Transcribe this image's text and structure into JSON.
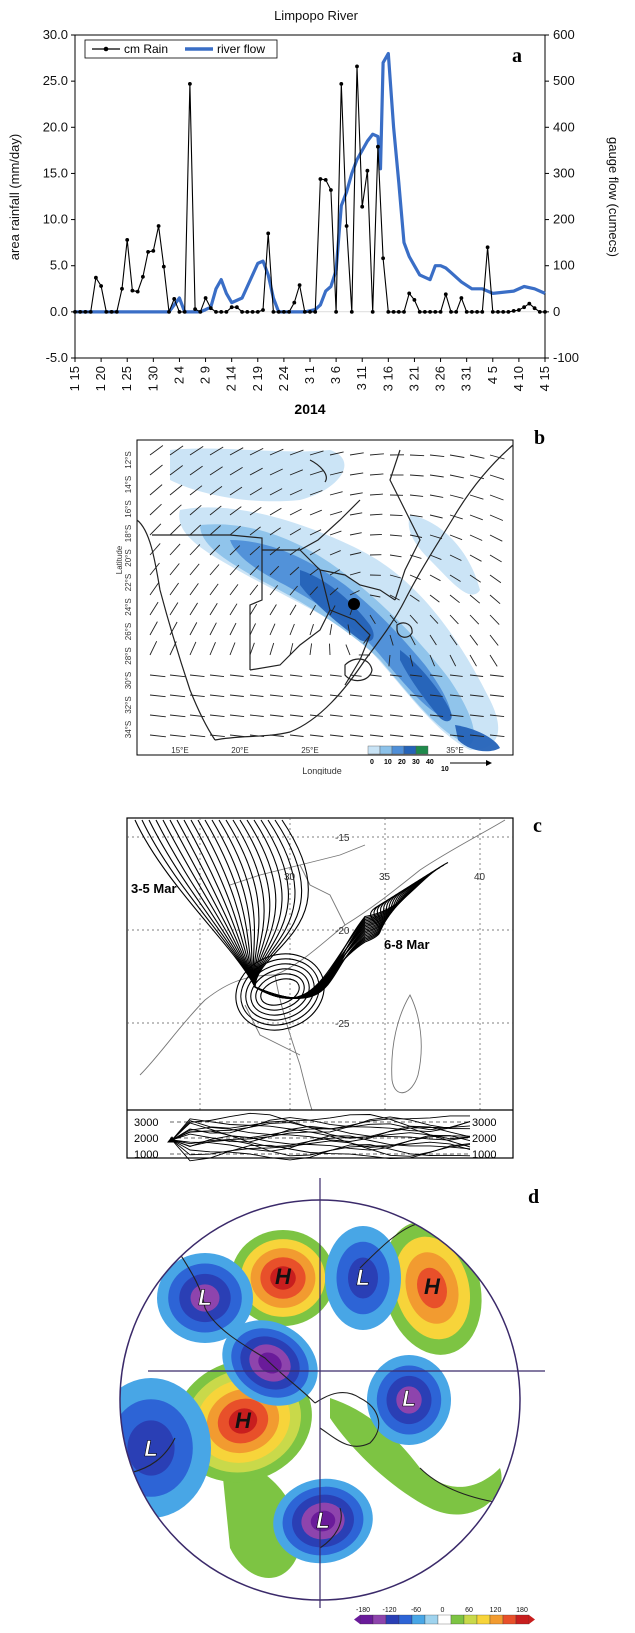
{
  "panel_labels": [
    "a",
    "b",
    "c",
    "d"
  ],
  "chart_data": {
    "type": "line",
    "title": "Limpopo River",
    "xlabel": "2014",
    "ylabel": "area rainfall (mm/day)",
    "y2label": "gauge flow (cumecs)",
    "ylim": [
      -5,
      30
    ],
    "y2lim": [
      -100,
      600
    ],
    "y_ticks": [
      "-5.0",
      "0.0",
      "5.0",
      "10.0",
      "15.0",
      "20.0",
      "25.0",
      "30.0"
    ],
    "y2_ticks": [
      "-100",
      "0",
      "100",
      "200",
      "300",
      "400",
      "500",
      "600"
    ],
    "x_ticks": [
      "1 15",
      "1 20",
      "1 25",
      "1 30",
      "2 4",
      "2 9",
      "2 14",
      "2 19",
      "2 24",
      "3 1",
      "3 6",
      "3 11",
      "3 16",
      "3 21",
      "3 26",
      "3 31",
      "4 5",
      "4 10",
      "4 15"
    ],
    "legend_position": "top-left",
    "series": [
      {
        "name": "cm Rain",
        "axis": "left",
        "color": "#000000",
        "marker": "dot",
        "x": [
          0,
          1,
          2,
          3,
          4,
          5,
          6,
          7,
          8,
          9,
          10,
          11,
          12,
          13,
          14,
          15,
          16,
          17,
          18,
          19,
          20,
          21,
          22,
          23,
          24,
          25,
          26,
          27,
          28,
          29,
          30,
          31,
          32,
          33,
          34,
          35,
          36,
          37,
          38,
          39,
          40,
          41,
          42,
          43,
          44,
          45,
          46,
          47,
          48,
          49,
          50,
          51,
          52,
          53,
          54,
          55,
          56,
          57,
          58,
          59,
          60,
          61,
          62,
          63,
          64,
          65,
          66,
          67,
          68,
          69,
          70,
          71,
          72,
          73,
          74,
          75,
          76,
          77,
          78,
          79,
          80,
          81,
          82,
          83,
          84,
          85,
          86,
          87,
          88,
          89,
          90
        ],
        "values": [
          0,
          0,
          0,
          0,
          3.7,
          2.8,
          0,
          0,
          0,
          2.5,
          7.8,
          2.3,
          2.2,
          3.8,
          6.5,
          6.6,
          9.3,
          4.9,
          0,
          1.4,
          0,
          0,
          24.7,
          0.3,
          0,
          1.5,
          0.4,
          0,
          0,
          0,
          0.5,
          0.5,
          0,
          0,
          0,
          0,
          0.2,
          8.5,
          0,
          0,
          0,
          0,
          1.0,
          2.9,
          0,
          0,
          0,
          14.4,
          14.3,
          13.2,
          0,
          24.7,
          9.3,
          0,
          26.6,
          11.4,
          15.3,
          0,
          17.9,
          5.8,
          0,
          0,
          0,
          0,
          2.0,
          1.3,
          0,
          0,
          0,
          0,
          0,
          1.9,
          0,
          0,
          1.5,
          0,
          0,
          0,
          0,
          7.0,
          0,
          0,
          0,
          0,
          0.1,
          0.2,
          0.5,
          0.9,
          0.4,
          0,
          0
        ]
      },
      {
        "name": "river flow",
        "axis": "right",
        "color": "#3a6ec6",
        "x": [
          0,
          4,
          8,
          14,
          18,
          19,
          20,
          21,
          22,
          24,
          25,
          26,
          27,
          28,
          29,
          30,
          32,
          34,
          35,
          36,
          37,
          38,
          39,
          40,
          44,
          46,
          47,
          48,
          49,
          50,
          51,
          52,
          53,
          54,
          55,
          56,
          57,
          58,
          58.5,
          59,
          60,
          61,
          62,
          63,
          64,
          65,
          66,
          67,
          68,
          69,
          70,
          71,
          72,
          74,
          76,
          78,
          80,
          84,
          86,
          88,
          90
        ],
        "values": [
          0,
          0,
          0,
          0,
          0,
          15,
          30,
          0,
          0,
          0,
          5,
          10,
          50,
          70,
          40,
          20,
          30,
          80,
          105,
          110,
          80,
          30,
          0,
          0,
          0,
          5,
          15,
          45,
          55,
          90,
          230,
          260,
          300,
          330,
          350,
          370,
          385,
          380,
          310,
          540,
          560,
          400,
          280,
          150,
          120,
          100,
          80,
          75,
          70,
          100,
          100,
          95,
          85,
          65,
          50,
          50,
          40,
          45,
          55,
          50,
          40
        ]
      }
    ]
  },
  "map_b": {
    "xlabel": "Longitude",
    "ylabel": "Latitude",
    "lon_ticks": [
      "15°E",
      "20°E",
      "25°E",
      "30°E",
      "35°E"
    ],
    "lat_ticks": [
      "12°S",
      "14°S",
      "16°S",
      "18°S",
      "20°S",
      "22°S",
      "24°S",
      "26°S",
      "28°S",
      "30°S",
      "32°S",
      "34°S"
    ],
    "colorbar_ticks": [
      "0",
      "10",
      "20",
      "30",
      "40"
    ],
    "vector_scale": "10",
    "colors": [
      "#c8e3f5",
      "#8cc2ea",
      "#4f8fd8",
      "#2563b8",
      "#1f8a4c"
    ]
  },
  "map_c": {
    "lat_labels": [
      "-15",
      "-20",
      "-25"
    ],
    "lon_labels": [
      "30",
      "35",
      "40"
    ],
    "annotations": [
      "3-5 Mar",
      "6-8 Mar"
    ],
    "height_ticks": [
      "3000",
      "2000",
      "1000"
    ]
  },
  "map_d": {
    "high_symbol": "H",
    "low_symbol": "L",
    "colorbar_ticks": [
      "-180",
      "-120",
      "-60",
      "0",
      "60",
      "120",
      "180"
    ],
    "colors": [
      "#6a1b9a",
      "#8e44ad",
      "#2a3fb5",
      "#2d64d6",
      "#48a6e6",
      "#9fd3ee",
      "#ffffff",
      "#7dc443",
      "#c9d94a",
      "#f7d43a",
      "#f29b30",
      "#e8502a",
      "#c81e1e"
    ]
  }
}
